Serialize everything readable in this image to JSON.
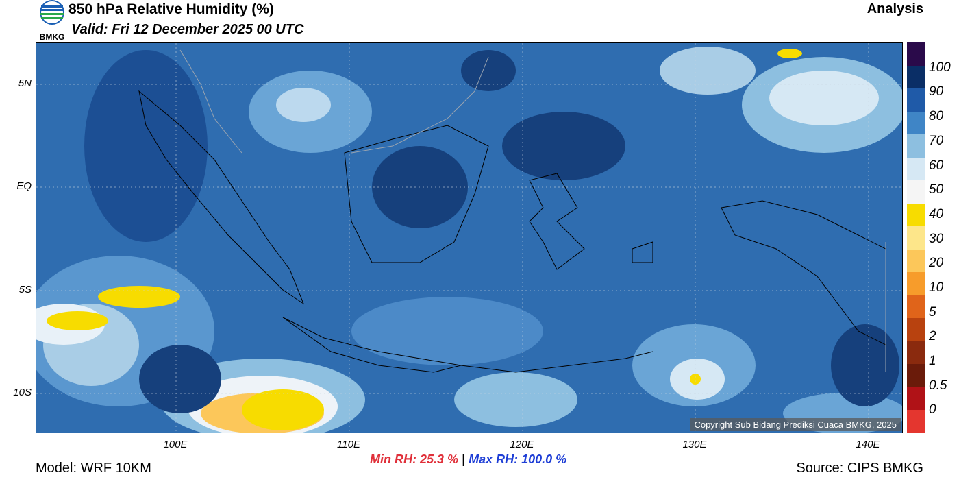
{
  "header": {
    "title": "850 hPa Relative Humidity (%)",
    "valid": "Valid: Fri 12 December 2025 00 UTC",
    "run_type": "Analysis",
    "logo_text": "BMKG"
  },
  "map": {
    "copyright": "Copyright Sub Bidang Prediksi Cuaca BMKG, 2025",
    "lat_labels": [
      "5N",
      "EQ",
      "5S",
      "10S"
    ],
    "lon_labels": [
      "100E",
      "110E",
      "120E",
      "130E",
      "140E"
    ]
  },
  "colorbar": {
    "labels": [
      "100",
      "90",
      "80",
      "70",
      "60",
      "50",
      "40",
      "30",
      "20",
      "10",
      "5",
      "2",
      "1",
      "0.5",
      "0"
    ],
    "colors": [
      "#2a0a4a",
      "#0a2e66",
      "#1f5aa8",
      "#3f85c6",
      "#8dbfe0",
      "#d6e8f4",
      "#f5f5f5",
      "#f7dc00",
      "#fde68a",
      "#fcc75a",
      "#f79c2b",
      "#e0641a",
      "#b8420f",
      "#8a2a0e",
      "#6a1b0a",
      "#b01217",
      "#e4362f"
    ]
  },
  "footer": {
    "model": "Model: WRF 10KM",
    "source": "Source: CIPS BMKG",
    "min_rh": "Min RH:  25.3 %",
    "separator": "|",
    "max_rh": "Max RH: 100.0 %"
  }
}
